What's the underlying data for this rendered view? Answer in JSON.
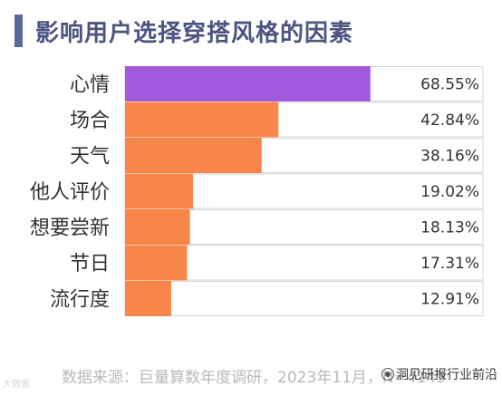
{
  "colors": {
    "accent": "#5a6a9a",
    "title": "#4b5580",
    "highlight": "#a259dd",
    "bar": "#f8854a",
    "track_border": "#d5d5d5",
    "label": "#333333"
  },
  "title": "影响用户选择穿搭风格的因素",
  "source": "数据来源：巨量算数年度调研，2023年11月，N=4143",
  "watermark_left": "大数据",
  "watermark_right": "洞见研报行业前沿",
  "chart_data": {
    "type": "bar",
    "orientation": "horizontal",
    "title": "影响用户选择穿搭风格的因素",
    "categories": [
      "心情",
      "场合",
      "天气",
      "他人评价",
      "想要尝新",
      "节日",
      "流行度"
    ],
    "values": [
      68.55,
      42.84,
      38.16,
      19.02,
      18.13,
      17.31,
      12.91
    ],
    "value_labels": [
      "68.55%",
      "42.84%",
      "38.16%",
      "19.02%",
      "18.13%",
      "17.31%",
      "12.91%"
    ],
    "xlim": [
      0,
      100
    ],
    "grid": false,
    "legend": "none",
    "highlight_index": 0
  }
}
